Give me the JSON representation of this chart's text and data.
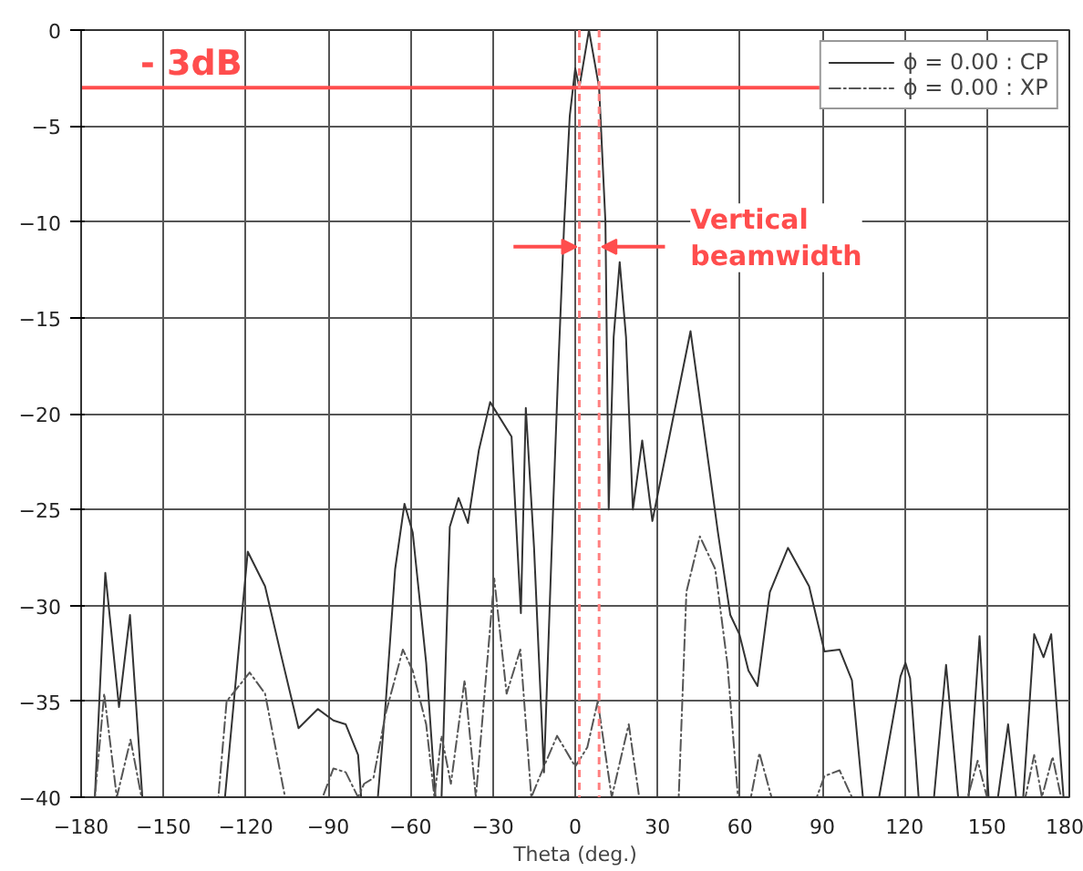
{
  "chart_data": {
    "type": "line",
    "xlabel": "Theta (deg.)",
    "xlim": [
      -180,
      180
    ],
    "xticks": [
      -180,
      -150,
      -120,
      -90,
      -60,
      -30,
      0,
      30,
      60,
      90,
      120,
      150,
      180
    ],
    "ylim": [
      -40,
      0
    ],
    "yticks": [
      -40,
      -35,
      -30,
      -25,
      -20,
      -15,
      -10,
      -5,
      0
    ],
    "grid": true,
    "legend": "top right",
    "series": [
      {
        "name": "ϕ = 0.00 : CP",
        "color": "#333333",
        "line_style": "solid",
        "x": [
          -180,
          -175,
          -171.2,
          -166.2,
          -162.2,
          -157.7,
          -127.6,
          -119.3,
          -113,
          -107.3,
          -100.8,
          -93.8,
          -88.1,
          -83.6,
          -79.1,
          -78,
          -71.9,
          -69,
          -65.6,
          -62.2,
          -59.2,
          -54.3,
          -50.9,
          -48.7,
          -45.7,
          -42.5,
          -39.1,
          -35.1,
          -31,
          -23.2,
          -19.8,
          -18,
          -15,
          -11.4,
          -8,
          -6,
          -4,
          -2,
          0,
          1.5,
          5,
          8.7,
          11,
          12.2,
          14,
          16.2,
          18.5,
          21,
          24.4,
          28.1,
          34.3,
          42,
          52,
          56.5,
          59.8,
          63.1,
          66.4,
          70.9,
          77.5,
          85.2,
          90.8,
          96.3,
          100.8,
          104.8,
          110.7,
          118.5,
          120.3,
          122,
          125.1,
          130.7,
          135.1,
          139.5,
          143.3,
          147.3,
          150.6,
          154,
          157.7,
          160.6,
          163.2,
          167.2,
          170.6,
          173.4,
          177.9,
          180
        ],
        "values": [
          -40,
          -40,
          -28.3,
          -35.3,
          -30.5,
          -40,
          -40,
          -27.2,
          -29,
          -32.5,
          -36.4,
          -35.4,
          -36,
          -36.2,
          -37.8,
          -40,
          -40,
          -35,
          -28.1,
          -24.7,
          -26.2,
          -33,
          -40,
          -40,
          -25.9,
          -24.4,
          -25.7,
          -21.9,
          -19.4,
          -21.2,
          -30.4,
          -19.7,
          -27,
          -38.7,
          -24.7,
          -17,
          -10,
          -4.5,
          -2,
          -3,
          0,
          -3,
          -10,
          -25,
          -16,
          -12.1,
          -16,
          -25,
          -21.4,
          -25.6,
          -21.2,
          -15.7,
          -26.2,
          -30.5,
          -31.5,
          -33.4,
          -34.2,
          -29.3,
          -27,
          -29,
          -32.4,
          -32.3,
          -33.9,
          -40,
          -40,
          -33.7,
          -33,
          -33.8,
          -40,
          -40,
          -33.1,
          -40,
          -40,
          -31.6,
          -40,
          -40,
          -36.2,
          -40,
          -40,
          -31.5,
          -32.7,
          -31.5,
          -40,
          -40
        ]
      },
      {
        "name": "ϕ = 0.00 : XP",
        "color": "#555555",
        "line_style": "dashed",
        "x": [
          -180,
          -175,
          -171.6,
          -167,
          -162,
          -158,
          -130,
          -127,
          -118.6,
          -113,
          -105.7,
          -92,
          -88.1,
          -83.6,
          -79.1,
          -76.9,
          -73.5,
          -69,
          -62.8,
          -59.2,
          -54.3,
          -51.3,
          -48.7,
          -45.3,
          -40.3,
          -36.2,
          -29.5,
          -25,
          -20,
          -16,
          -11.4,
          -6.6,
          0,
          4.4,
          8.2,
          13.3,
          19.5,
          23.3,
          37.7,
          40.5,
          45.4,
          51,
          55.4,
          59.3,
          64,
          67.1,
          71.5,
          88,
          90.8,
          96.3,
          100.8,
          143,
          146.6,
          150,
          164,
          167.2,
          170,
          173.9,
          177,
          180
        ],
        "values": [
          -40,
          -40,
          -34.6,
          -40,
          -37,
          -40,
          -40,
          -35,
          -33.5,
          -34.6,
          -40,
          -40,
          -38.5,
          -38.7,
          -40,
          -39.3,
          -39,
          -35.6,
          -32.3,
          -33.4,
          -36.2,
          -40,
          -36.8,
          -39.3,
          -33.9,
          -40,
          -28.6,
          -34.6,
          -32.3,
          -40,
          -38.4,
          -36.8,
          -38.4,
          -37.4,
          -35,
          -40,
          -36.2,
          -40,
          -40,
          -29.3,
          -26.4,
          -28.1,
          -33,
          -40,
          -40,
          -37.7,
          -40,
          -40,
          -38.9,
          -38.6,
          -40,
          -40,
          -38.1,
          -40,
          -40,
          -37.8,
          -40,
          -37.9,
          -40,
          -40
        ]
      }
    ],
    "ref_lines": [
      {
        "axis": "y",
        "value": -3,
        "label": "- 3dB",
        "color": "#ff4d4d",
        "line_style": "solid"
      },
      {
        "axis": "x",
        "value": 1.5,
        "color": "#ff8080",
        "line_style": "dashed"
      },
      {
        "axis": "x",
        "value": 8.7,
        "color": "#ff8080",
        "line_style": "dashed"
      }
    ],
    "annotations": [
      {
        "text": "Vertical\nbeamwidth",
        "x": 8.7,
        "y": -11.3
      }
    ]
  }
}
